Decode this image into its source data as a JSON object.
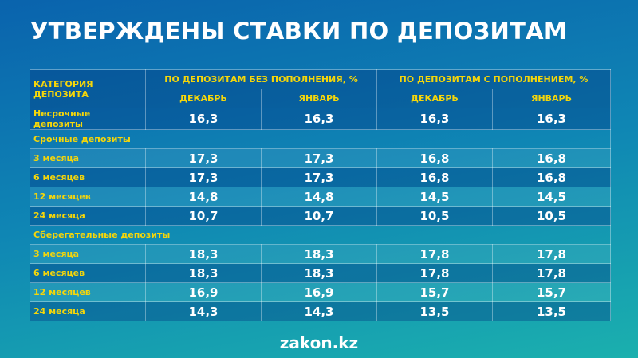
{
  "header": {
    "title": "УТВЕРЖДЕНЫ СТАВКИ ПО ДЕПОЗИТАМ"
  },
  "table": {
    "category_header": "КАТЕГОРИЯ ДЕПОЗИТА",
    "groups": [
      "ПО ДЕПОЗИТАМ БЕЗ ПОПОЛНЕНИЯ, %",
      "ПО ДЕПОЗИТАМ С ПОПОЛНЕНИЕМ, %"
    ],
    "months": [
      "ДЕКАБРЬ",
      "ЯНВАРЬ",
      "ДЕКАБРЬ",
      "ЯНВАРЬ"
    ],
    "sections": [
      {
        "rows": [
          [
            "Несрочные депозиты",
            "16,3",
            "16,3",
            "16,3",
            "16,3"
          ]
        ]
      },
      {
        "title": "Срочные депозиты",
        "rows": [
          [
            "3 месяца",
            "17,3",
            "17,3",
            "16,8",
            "16,8"
          ],
          [
            "6 месяцев",
            "17,3",
            "17,3",
            "16,8",
            "16,8"
          ],
          [
            "12 месяцев",
            "14,8",
            "14,8",
            "14,5",
            "14,5"
          ],
          [
            "24 месяца",
            "10,7",
            "10,7",
            "10,5",
            "10,5"
          ]
        ]
      },
      {
        "title": "Сберегательные депозиты",
        "rows": [
          [
            "3 месяца",
            "18,3",
            "18,3",
            "17,8",
            "17,8"
          ],
          [
            "6 месяцев",
            "18,3",
            "18,3",
            "17,8",
            "17,8"
          ],
          [
            "12 месяцев",
            "16,9",
            "16,9",
            "15,7",
            "15,7"
          ],
          [
            "24 месяца",
            "14,3",
            "14,3",
            "13,5",
            "13,5"
          ]
        ]
      }
    ]
  },
  "footer": {
    "brand": "zakon.kz"
  }
}
